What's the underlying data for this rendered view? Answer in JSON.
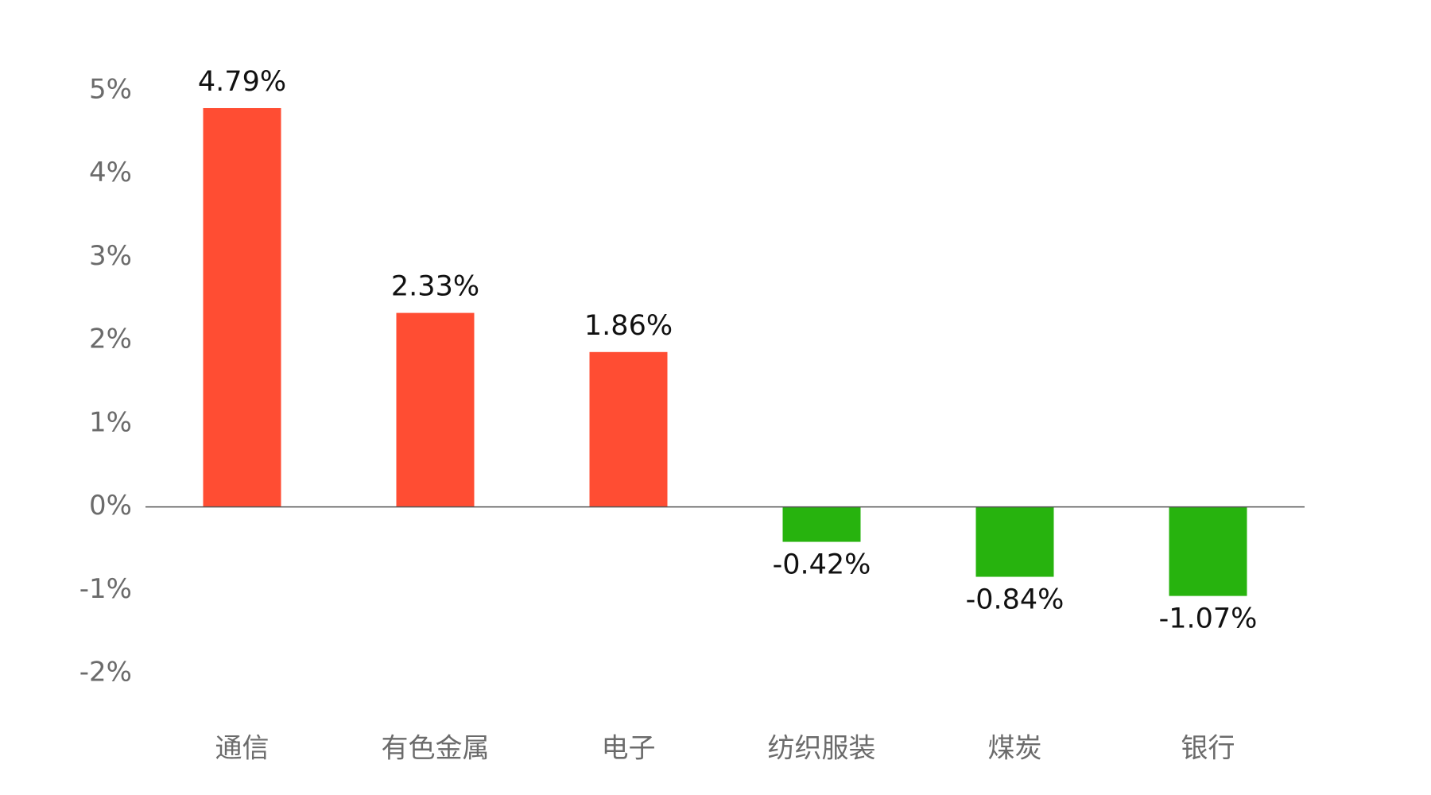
{
  "chart_data": {
    "type": "bar",
    "categories": [
      "通信",
      "有色金属",
      "电子",
      "纺织服装",
      "煤炭",
      "银行"
    ],
    "values": [
      4.79,
      2.33,
      1.86,
      -0.42,
      -0.84,
      -1.07
    ],
    "value_labels": [
      "4.79%",
      "2.33%",
      "1.86%",
      "-0.42%",
      "-0.84%",
      "-1.07%"
    ],
    "colors": [
      "#ff4d33",
      "#ff4d33",
      "#ff4d33",
      "#27b30e",
      "#27b30e",
      "#27b30e"
    ],
    "ylim": [
      -2,
      5
    ],
    "yticks": [
      {
        "value": -2,
        "label": "-2%"
      },
      {
        "value": -1,
        "label": "-1%"
      },
      {
        "value": 0,
        "label": "0%"
      },
      {
        "value": 1,
        "label": "1%"
      },
      {
        "value": 2,
        "label": "2%"
      },
      {
        "value": 3,
        "label": "3%"
      },
      {
        "value": 4,
        "label": "4%"
      },
      {
        "value": 5,
        "label": "5%"
      }
    ],
    "grid": false
  }
}
